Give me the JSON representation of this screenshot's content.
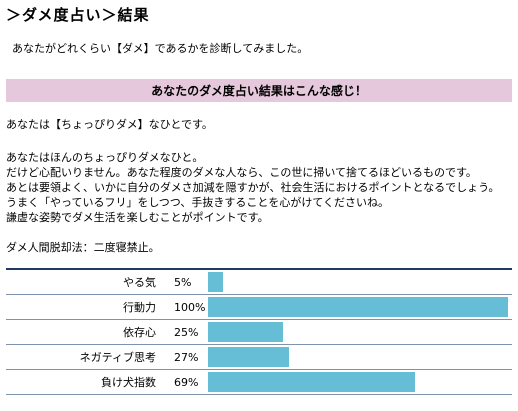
{
  "header": {
    "title": "＞ダメ度占い＞結果"
  },
  "intro": "あなたがどれくらい【ダメ】であるかを診断してみました。",
  "result_heading": "あなたのダメ度占い結果はこんな感じ！",
  "verdict": "あなたは【ちょっぴりダメ】なひとです。",
  "description": [
    "あなたはほんのちょっぴりダメなひと。",
    "だけど心配いりません。あなた程度のダメな人なら、この世に掃いて捨てるほどいるものです。",
    "あとは要領よく、いかに自分のダメさ加減を隠すかが、社会生活におけるポイントとなるでしょう。",
    "うまく「やっているフリ」をしつつ、手抜きすることを心がけてくださいね。",
    "謙虚な姿勢でダメ生活を楽しむことがポイントです。"
  ],
  "tip": "ダメ人間脱却法：二度寝禁止。",
  "colors": {
    "bar": "#65bdd6",
    "heading_bg": "#e6c8dc",
    "rule": "#1f3b63"
  },
  "stats": [
    {
      "label": "やる気",
      "percent_text": "5%",
      "value": 5
    },
    {
      "label": "行動力",
      "percent_text": "100%",
      "value": 100
    },
    {
      "label": "依存心",
      "percent_text": "25%",
      "value": 25
    },
    {
      "label": "ネガティブ思考",
      "percent_text": "27%",
      "value": 27
    },
    {
      "label": "負け犬指数",
      "percent_text": "69%",
      "value": 69
    }
  ]
}
